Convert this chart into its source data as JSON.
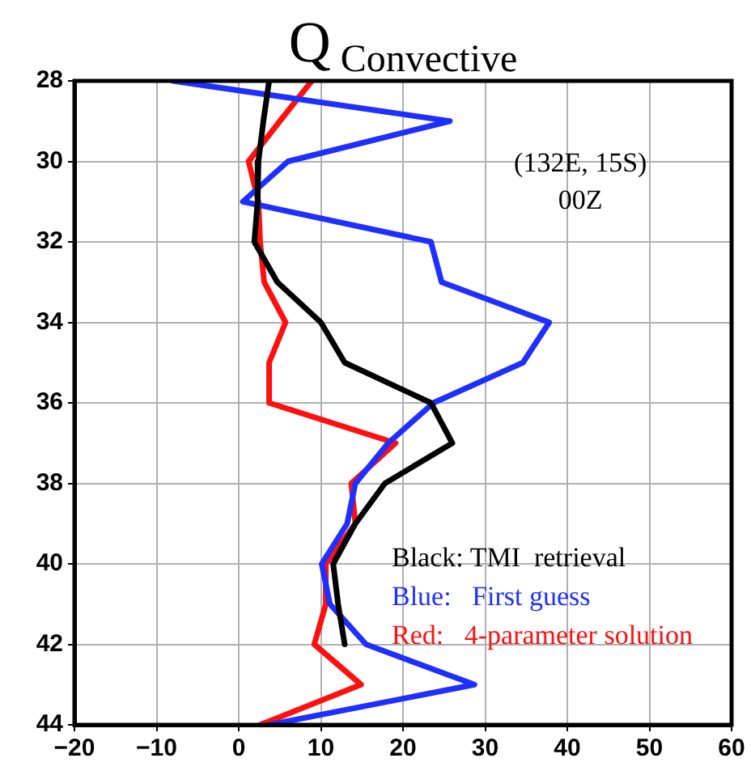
{
  "chart_data": {
    "type": "line",
    "title": "Q$_{Convective}$",
    "annotations": [
      "(132E, 15S)",
      "00Z"
    ],
    "xlim": [
      -20,
      60
    ],
    "xticks": [
      -20,
      -10,
      0,
      10,
      20,
      30,
      40,
      50,
      60
    ],
    "ylim": [
      44,
      28
    ],
    "yticks": [
      28,
      30,
      32,
      34,
      36,
      38,
      40,
      42,
      44
    ],
    "grid": true,
    "legend": "bottom right",
    "marker": "none",
    "line_style": "solid",
    "series": [
      {
        "name": "Black: TMI  retrieval",
        "color": "#000000",
        "x": [
          3.7,
          3,
          2.4,
          2.3,
          1.9,
          4.7,
          10,
          12.9,
          23.4,
          26,
          17.8,
          14.2,
          11.5,
          12.1,
          12.9
        ],
        "values": [
          28,
          29,
          30,
          31,
          32,
          33,
          34,
          35,
          36,
          37,
          38,
          39,
          40,
          41,
          42
        ]
      },
      {
        "name": "Blue:   First guess",
        "color": "#1f2fff",
        "x": [
          -8,
          25.7,
          6,
          0.5,
          23.4,
          24.7,
          37.8,
          34.6,
          23.7,
          18.2,
          14.2,
          13.2,
          10.1,
          11.1,
          15.5,
          28.7,
          3.7
        ],
        "values": [
          28,
          29,
          30,
          31,
          32,
          33,
          34,
          35,
          36,
          37,
          38,
          39,
          40,
          41,
          42,
          43,
          44
        ]
      },
      {
        "name": "Red:   4-parameter solution",
        "color": "#ff1010",
        "x": [
          8.9,
          5,
          1.2,
          2.4,
          2.6,
          3.1,
          5.7,
          3.7,
          3.7,
          19.1,
          13.7,
          14.2,
          10.6,
          10.6,
          9.2,
          14.9,
          2.6
        ],
        "values": [
          28,
          29,
          30,
          31,
          32,
          33,
          34,
          35,
          36,
          37,
          38,
          39,
          40,
          41,
          42,
          43,
          44
        ]
      }
    ]
  }
}
